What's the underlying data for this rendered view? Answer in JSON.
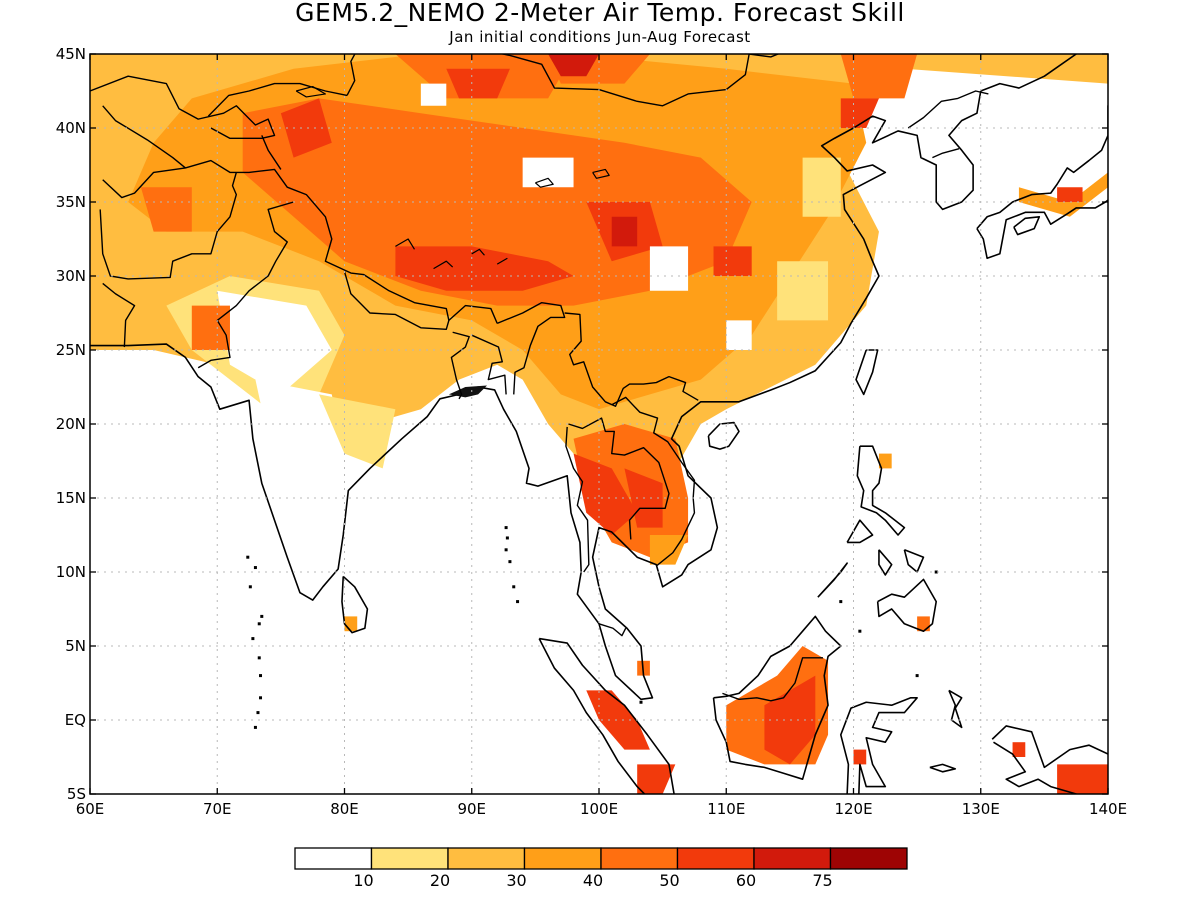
{
  "title": "GEM5.2_NEMO 2-Meter Air Temp. Forecast Skill",
  "subtitle": "Jan initial conditions  Jun-Aug Forecast",
  "map": {
    "lon_range": [
      60,
      140
    ],
    "lat_range": [
      -5,
      45
    ],
    "x_ticks": [
      {
        "value": 60,
        "label": "60E"
      },
      {
        "value": 70,
        "label": "70E"
      },
      {
        "value": 80,
        "label": "80E"
      },
      {
        "value": 90,
        "label": "90E"
      },
      {
        "value": 100,
        "label": "100E"
      },
      {
        "value": 110,
        "label": "110E"
      },
      {
        "value": 120,
        "label": "120E"
      },
      {
        "value": 130,
        "label": "130E"
      },
      {
        "value": 140,
        "label": "140E"
      }
    ],
    "y_ticks": [
      {
        "value": 45,
        "label": "45N"
      },
      {
        "value": 40,
        "label": "40N"
      },
      {
        "value": 35,
        "label": "35N"
      },
      {
        "value": 30,
        "label": "30N"
      },
      {
        "value": 25,
        "label": "25N"
      },
      {
        "value": 20,
        "label": "20N"
      },
      {
        "value": 15,
        "label": "15N"
      },
      {
        "value": 10,
        "label": "10N"
      },
      {
        "value": 5,
        "label": "5N"
      },
      {
        "value": 0,
        "label": "EQ"
      },
      {
        "value": -5,
        "label": "5S"
      }
    ],
    "grid": "dotted",
    "colorbar": {
      "colors": [
        "#ffffff",
        "#ffe27a",
        "#ffbd40",
        "#ff9f18",
        "#ff6f10",
        "#f23a0c",
        "#d21a0c",
        "#9e0404"
      ],
      "labels": [
        "10",
        "20",
        "30",
        "40",
        "50",
        "60",
        "75"
      ]
    }
  }
}
